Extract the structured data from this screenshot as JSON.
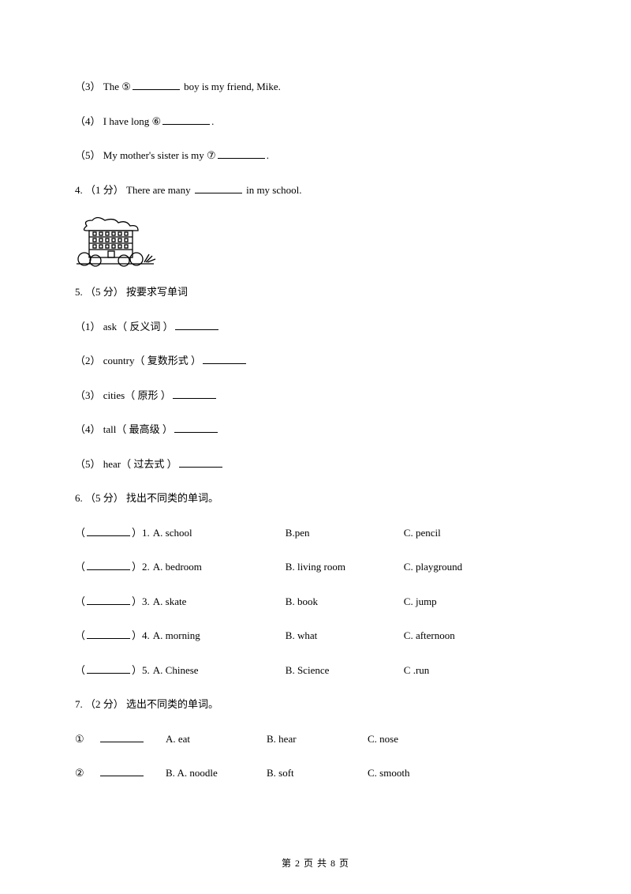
{
  "q3": {
    "num": "（3）",
    "text_before": " The ⑤",
    "text_after": " boy is my friend, Mike."
  },
  "q4": {
    "num": "（4）",
    "text_before": " I have long ⑥",
    "text_after": "."
  },
  "q5prev": {
    "num": "（5）",
    "text_before": " My mother's sister is my ⑦",
    "text_after": "."
  },
  "q4main": {
    "num": "4. （1 分）",
    "text_before": " There are many  ",
    "text_after": " in my school."
  },
  "q5": {
    "header_num": "5. （5 分）",
    "header_text": "     按要求写单词",
    "items": [
      {
        "num": "（1）",
        "text": " ask（ 反义词 ）"
      },
      {
        "num": "（2）",
        "text": " country（ 复数形式 ）"
      },
      {
        "num": "（3）",
        "text": " cities（ 原形 ）"
      },
      {
        "num": "（4）",
        "text": " tall（ 最高级 ）"
      },
      {
        "num": "（5）",
        "text": " hear（ 过去式 ）"
      }
    ]
  },
  "q6": {
    "header_num": "6. （5 分）",
    "header_text": " 找出不同类的单词。",
    "rows": [
      {
        "n": "1.",
        "a": "A. school",
        "b": "B.pen",
        "c": "C. pencil"
      },
      {
        "n": "2.",
        "a": "A. bedroom",
        "b": "B. living room",
        "c": "C. playground"
      },
      {
        "n": "3.",
        "a": "A. skate",
        "b": "B. book",
        "c": "C. jump"
      },
      {
        "n": "4.",
        "a": "A. morning",
        "b": "B. what",
        "c": "C. afternoon"
      },
      {
        "n": "5.",
        "a": "A. Chinese",
        "b": "B. Science",
        "c": "C .run"
      }
    ]
  },
  "q7": {
    "header_num": "7. （2 分）",
    "header_text": " 选出不同类的单词。",
    "rows": [
      {
        "n": "①",
        "a": "A. eat",
        "b": "B. hear",
        "c": "C. nose"
      },
      {
        "n": "②",
        "a": "B. A. noodle",
        "b": "B. soft",
        "c": "C. smooth"
      }
    ]
  },
  "footer": "第 2 页 共 8 页"
}
